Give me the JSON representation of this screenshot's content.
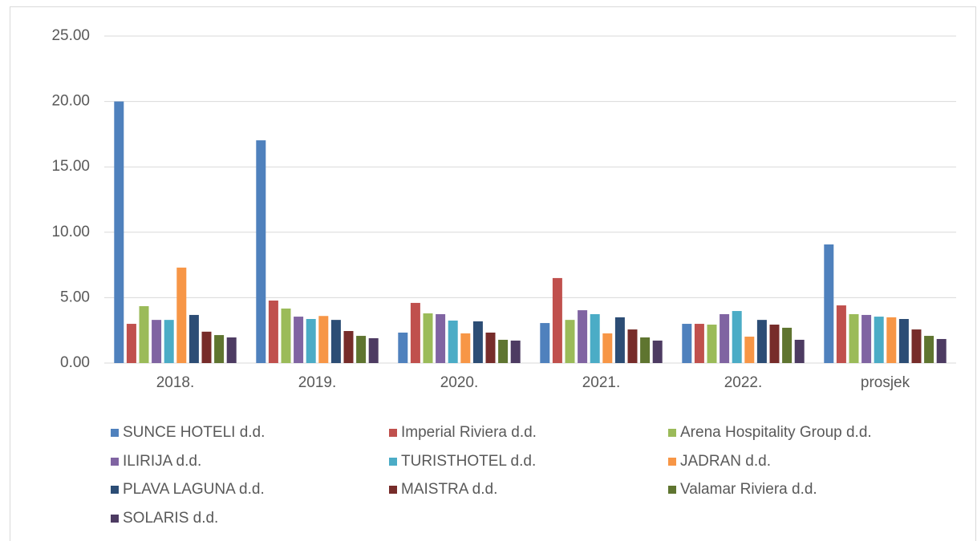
{
  "chart_data": {
    "type": "bar",
    "categories": [
      "2018.",
      "2019.",
      "2020.",
      "2021.",
      "2022.",
      "prosjek"
    ],
    "series": [
      {
        "name": "SUNCE HOTELI d.d.",
        "color": "#4f81bd",
        "values": [
          20.0,
          17.03,
          2.33,
          3.06,
          3.0,
          9.07
        ]
      },
      {
        "name": "Imperial Riviera d.d.",
        "color": "#c0504d",
        "values": [
          3.0,
          4.78,
          4.6,
          6.5,
          3.0,
          4.41
        ]
      },
      {
        "name": "Arena Hospitality Group d.d.",
        "color": "#9bbb59",
        "values": [
          4.35,
          4.17,
          3.8,
          3.3,
          2.94,
          3.74
        ]
      },
      {
        "name": "ILIRIJA d.d.",
        "color": "#8064a2",
        "values": [
          3.3,
          3.55,
          3.74,
          4.04,
          3.74,
          3.68
        ]
      },
      {
        "name": "TURISTHOTEL d.d.",
        "color": "#4bacc6",
        "values": [
          3.3,
          3.37,
          3.25,
          3.74,
          3.98,
          3.55
        ]
      },
      {
        "name": "JADRAN d.d.",
        "color": "#f79646",
        "values": [
          7.3,
          3.6,
          2.27,
          2.27,
          2.02,
          3.5
        ]
      },
      {
        "name": "PLAVA LAGUNA d.d.",
        "color": "#2c4d75",
        "values": [
          3.68,
          3.3,
          3.19,
          3.5,
          3.3,
          3.37
        ]
      },
      {
        "name": "MAISTRA d.d.",
        "color": "#772c2a",
        "values": [
          2.4,
          2.45,
          2.33,
          2.57,
          2.94,
          2.57
        ]
      },
      {
        "name": "Valamar Riviera d.d.",
        "color": "#5f7530",
        "values": [
          2.14,
          2.08,
          1.78,
          1.96,
          2.7,
          2.08
        ]
      },
      {
        "name": "SOLARIS d.d.",
        "color": "#4d3b62",
        "values": [
          1.96,
          1.9,
          1.72,
          1.72,
          1.78,
          1.84
        ]
      }
    ],
    "ylim": [
      0,
      25
    ],
    "yticks": [
      {
        "value": 0,
        "label": "0.00"
      },
      {
        "value": 5,
        "label": "5.00"
      },
      {
        "value": 10,
        "label": "10.00"
      },
      {
        "value": 15,
        "label": "15.00"
      },
      {
        "value": 20,
        "label": "20.00"
      },
      {
        "value": 25,
        "label": "25.00"
      }
    ],
    "grid": true,
    "legend": "bottom"
  }
}
